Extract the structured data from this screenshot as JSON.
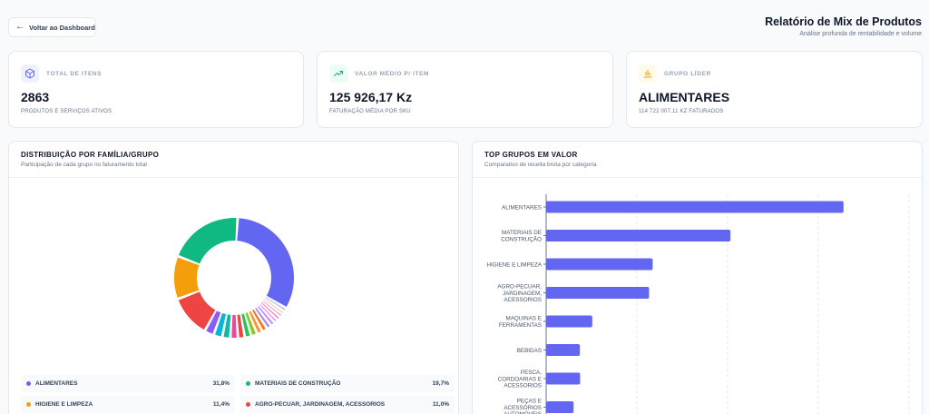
{
  "header": {
    "back_label": "Voltar ao Dashboard",
    "title": "Relatório de Mix de Produtos",
    "subtitle": "Análise profunda de rentabilidade e volume"
  },
  "kpis": [
    {
      "label": "TOTAL DE ITENS",
      "value": "2863",
      "desc": "PRODUTOS E SERVIÇOS ATIVOS",
      "icon": "cube-icon",
      "color": "#6366f1"
    },
    {
      "label": "VALOR MÉDIO P/ ITEM",
      "value": "125 926,17 Kz",
      "desc": "FATURAÇÃO MÉDIA POR SKU",
      "icon": "trend-up-icon",
      "color": "#10b981"
    },
    {
      "label": "GRUPO LÍDER",
      "value": "ALIMENTARES",
      "desc": "114 722 007,11 KZ FATURADOS",
      "icon": "bar-chart-icon",
      "color": "#f59e0b"
    }
  ],
  "distribution": {
    "title": "DISTRIBUIÇÃO POR FAMÍLIA/GRUPO",
    "subtitle": "Participação de cada grupo no faturamento total",
    "legend": [
      {
        "name": "ALIMENTARES",
        "pct": "31,8%",
        "color": "#6366f1"
      },
      {
        "name": "MATERIAIS DE CONSTRUÇÃO",
        "pct": "19,7%",
        "color": "#10b981"
      },
      {
        "name": "HIGIENE E LIMPEZA",
        "pct": "11,4%",
        "color": "#f59e0b"
      },
      {
        "name": "AGRO-PECUAR, JARDINAGEM, ACESSORIOS",
        "pct": "11,0%",
        "color": "#ef4444"
      }
    ]
  },
  "top_groups": {
    "title": "TOP GRUPOS EM VALOR",
    "subtitle": "Comparativo de receita bruta por categoria"
  },
  "chart_data": [
    {
      "type": "pie",
      "slices": [
        {
          "name": "ALIMENTARES",
          "value": 31.8,
          "color": "#6366f1"
        },
        {
          "value": 1.0,
          "color": "#a5b4fc"
        },
        {
          "value": 0.9,
          "color": "#fda4af"
        },
        {
          "value": 0.9,
          "color": "#fb7185"
        },
        {
          "value": 1.0,
          "color": "#f472b6"
        },
        {
          "value": 1.0,
          "color": "#e879f9"
        },
        {
          "value": 1.2,
          "color": "#c084fc"
        },
        {
          "value": 1.3,
          "color": "#a78bfa"
        },
        {
          "value": 1.4,
          "color": "#f97316"
        },
        {
          "value": 1.5,
          "color": "#fb923c"
        },
        {
          "value": 1.6,
          "color": "#84cc16"
        },
        {
          "value": 1.7,
          "color": "#22c55e"
        },
        {
          "value": 1.8,
          "color": "#ef4444"
        },
        {
          "value": 2.0,
          "color": "#ec4899"
        },
        {
          "value": 2.1,
          "color": "#14b8a6"
        },
        {
          "value": 2.3,
          "color": "#06b6d4"
        },
        {
          "value": 2.5,
          "color": "#8b5cf6"
        },
        {
          "name": "AGRO-PECUAR, JARDINAGEM, ACESSORIOS",
          "value": 11.0,
          "color": "#ef4444"
        },
        {
          "name": "HIGIENE E LIMPEZA",
          "value": 11.4,
          "color": "#f59e0b"
        },
        {
          "name": "MATERIAIS DE CONSTRUÇÃO",
          "value": 19.7,
          "color": "#10b981"
        }
      ]
    },
    {
      "type": "bar",
      "orientation": "horizontal",
      "categories": [
        [
          "ALIMENTARES"
        ],
        [
          "MATERIAIS DE",
          "CONSTRUÇÃO"
        ],
        [
          "HIGIENE E LIMPEZA"
        ],
        [
          "AGRO-PECUAR,",
          "JARDINAGEM,",
          "ACESSORIOS"
        ],
        [
          "MAQUINAS E",
          "FERRAMENTAS"
        ],
        [
          "BEBIDAS"
        ],
        [
          "PESCA,",
          "CORDOARIAS E",
          "ACESSORIOS"
        ],
        [
          "PEÇAS E",
          "ACESSÓRIOS",
          "AUTOMÓVEIS"
        ]
      ],
      "values": [
        114722007.11,
        71100000,
        41100000,
        39700000,
        17800000,
        13000000,
        13100000,
        10600000
      ],
      "color": "#6366f1",
      "xlim": [
        0,
        140000000
      ]
    }
  ]
}
